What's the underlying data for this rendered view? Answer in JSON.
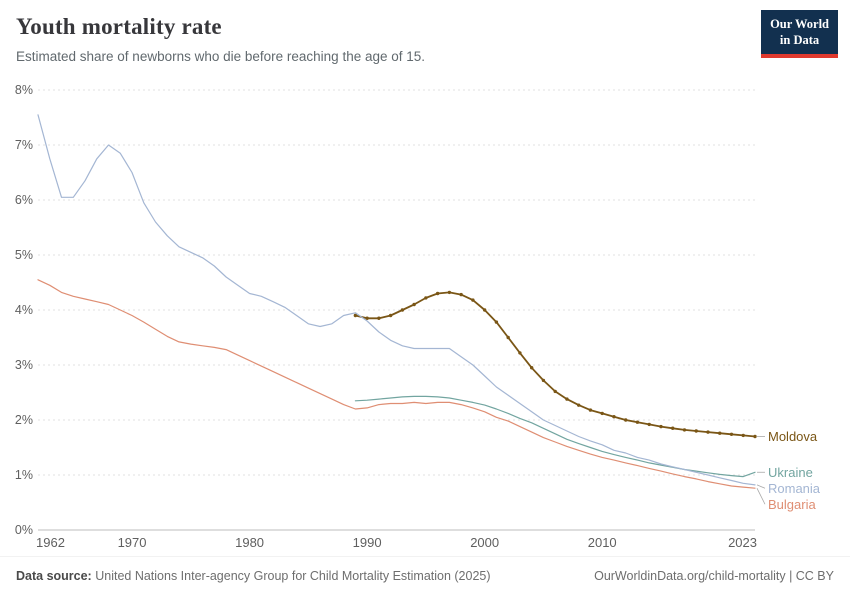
{
  "header": {
    "title": "Youth mortality rate",
    "subtitle": "Estimated share of newborns who die before reaching the age of 15.",
    "logo": {
      "line1": "Our World",
      "line2": "in Data",
      "bg": "#12304f",
      "accent": "#e0392e"
    }
  },
  "chart_data": {
    "type": "line",
    "title": "Youth mortality rate",
    "subtitle": "Estimated share of newborns who die before reaching the age of 15.",
    "xlabel": "",
    "ylabel": "",
    "xlim": [
      1962,
      2023
    ],
    "ylim": [
      0,
      8
    ],
    "x_ticks": [
      1962,
      1970,
      1980,
      1990,
      2000,
      2010,
      2023
    ],
    "y_tick_format": "percent",
    "grid": "horizontal-dashed",
    "legend_position": "right-end-labels",
    "colors": {
      "grid": "#e0e0e0",
      "axis": "#bdbdbd",
      "tick_label": "#5f5f5f",
      "connector": "#a8a8a8"
    },
    "series": [
      {
        "name": "Moldova",
        "color": "#7a5616",
        "focused": true,
        "marker": true,
        "start_year": 1989,
        "end_year": 2023,
        "values": [
          3.9,
          3.85,
          3.85,
          3.9,
          4.0,
          4.1,
          4.22,
          4.3,
          4.32,
          4.28,
          4.18,
          4.0,
          3.78,
          3.5,
          3.22,
          2.95,
          2.72,
          2.52,
          2.38,
          2.27,
          2.18,
          2.12,
          2.06,
          2.0,
          1.96,
          1.92,
          1.88,
          1.85,
          1.82,
          1.8,
          1.78,
          1.76,
          1.74,
          1.72,
          1.7
        ]
      },
      {
        "name": "Ukraine",
        "color": "#72a5a0",
        "focused": false,
        "marker": false,
        "start_year": 1989,
        "end_year": 2023,
        "values": [
          2.35,
          2.36,
          2.38,
          2.4,
          2.42,
          2.43,
          2.43,
          2.42,
          2.4,
          2.36,
          2.32,
          2.27,
          2.2,
          2.12,
          2.03,
          1.95,
          1.85,
          1.75,
          1.65,
          1.57,
          1.5,
          1.43,
          1.37,
          1.32,
          1.27,
          1.22,
          1.18,
          1.14,
          1.1,
          1.07,
          1.04,
          1.01,
          0.99,
          0.97,
          1.05
        ]
      },
      {
        "name": "Romania",
        "color": "#a4b6d3",
        "focused": false,
        "marker": false,
        "start_year": 1962,
        "end_year": 2023,
        "values": [
          7.55,
          6.75,
          6.05,
          6.05,
          6.35,
          6.75,
          7.0,
          6.85,
          6.5,
          5.95,
          5.6,
          5.35,
          5.15,
          5.05,
          4.95,
          4.8,
          4.6,
          4.45,
          4.3,
          4.25,
          4.15,
          4.05,
          3.9,
          3.75,
          3.7,
          3.75,
          3.9,
          3.95,
          3.8,
          3.6,
          3.45,
          3.35,
          3.3,
          3.3,
          3.3,
          3.3,
          3.15,
          3.0,
          2.8,
          2.6,
          2.45,
          2.3,
          2.15,
          2.0,
          1.9,
          1.8,
          1.7,
          1.62,
          1.55,
          1.45,
          1.4,
          1.32,
          1.27,
          1.2,
          1.15,
          1.1,
          1.05,
          1.0,
          0.95,
          0.9,
          0.85,
          0.82
        ]
      },
      {
        "name": "Bulgaria",
        "color": "#df8e73",
        "focused": false,
        "marker": false,
        "start_year": 1962,
        "end_year": 2023,
        "values": [
          4.55,
          4.45,
          4.32,
          4.25,
          4.2,
          4.15,
          4.1,
          4.0,
          3.9,
          3.78,
          3.65,
          3.52,
          3.42,
          3.38,
          3.35,
          3.32,
          3.28,
          3.18,
          3.08,
          2.98,
          2.88,
          2.78,
          2.68,
          2.58,
          2.48,
          2.38,
          2.28,
          2.2,
          2.22,
          2.28,
          2.3,
          2.3,
          2.32,
          2.3,
          2.32,
          2.32,
          2.28,
          2.22,
          2.15,
          2.05,
          1.98,
          1.88,
          1.78,
          1.68,
          1.6,
          1.52,
          1.45,
          1.38,
          1.32,
          1.27,
          1.22,
          1.17,
          1.12,
          1.07,
          1.02,
          0.97,
          0.93,
          0.88,
          0.84,
          0.8,
          0.78,
          0.76
        ]
      }
    ]
  },
  "footer": {
    "datasource_label": "Data source:",
    "datasource_text": "United Nations Inter-agency Group for Child Mortality Estimation (2025)",
    "credit": "OurWorldinData.org/child-mortality | CC BY"
  }
}
